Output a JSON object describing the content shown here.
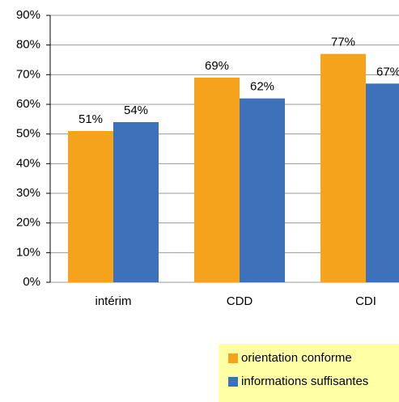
{
  "chart_data": {
    "type": "bar",
    "categories": [
      "intérim",
      "CDD",
      "CDI"
    ],
    "series": [
      {
        "name": "orientation conforme",
        "color": "#f5a31d",
        "values": [
          51,
          69,
          77
        ],
        "value_labels": [
          "51%",
          "69%",
          "77%"
        ]
      },
      {
        "name": "informations suffisantes",
        "color": "#3d72bb",
        "values": [
          54,
          62,
          67
        ],
        "value_labels": [
          "54%",
          "62%",
          "67%"
        ]
      }
    ],
    "ylim": [
      0,
      90
    ],
    "yticks": [
      {
        "value": 0,
        "label": "0%"
      },
      {
        "value": 10,
        "label": "10%"
      },
      {
        "value": 20,
        "label": "20%"
      },
      {
        "value": 30,
        "label": "30%"
      },
      {
        "value": 40,
        "label": "40%"
      },
      {
        "value": 50,
        "label": "50%"
      },
      {
        "value": 60,
        "label": "60%"
      },
      {
        "value": 70,
        "label": "70%"
      },
      {
        "value": 80,
        "label": "80%"
      },
      {
        "value": 90,
        "label": "90%"
      }
    ],
    "grid": true,
    "legend": "bottom-right"
  }
}
